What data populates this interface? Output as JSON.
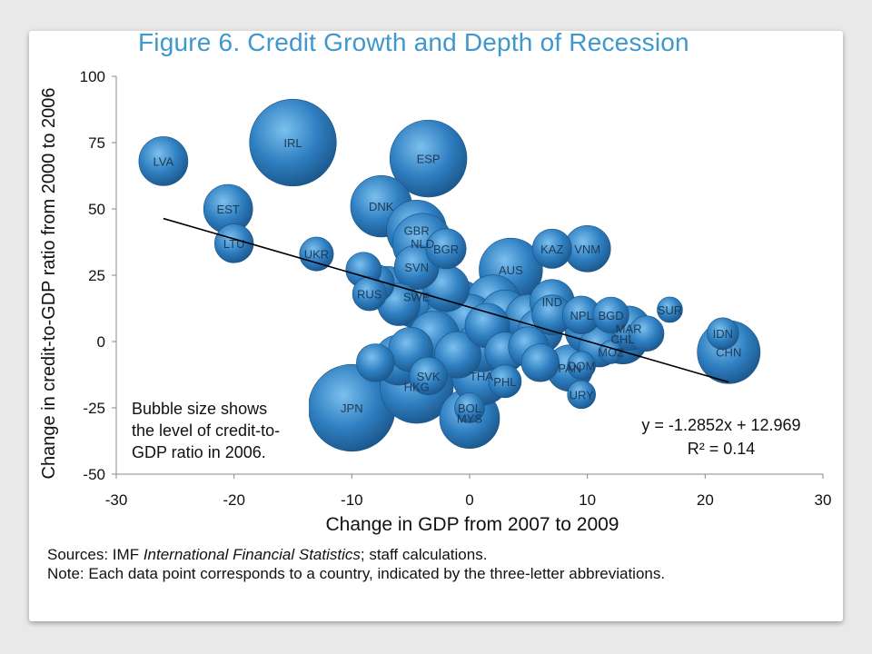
{
  "title": "Figure 6. Credit Growth and Depth of Recession",
  "notes": {
    "sources_prefix": "Sources: IMF ",
    "sources_italic": "International Financial Statistics",
    "sources_suffix": "; staff calculations.",
    "note": "Note: Each data point corresponds to a country, indicated by the three-letter abbreviations."
  },
  "colors": {
    "bubble": "#2f7fc1",
    "bubble_highlight": "#7cc0ee",
    "bubble_dark": "#1a5488",
    "label": "#1f3a56",
    "title": "#3e97cf",
    "trend": "#000000"
  },
  "chart_data": {
    "type": "scatter",
    "xlabel": "Change in GDP from 2007 to 2009",
    "ylabel": "Change in credit-to-GDP ratio from 2000 to 2006",
    "xlim": [
      -30,
      30
    ],
    "ylim": [
      -50,
      100
    ],
    "xticks": [
      "-30",
      "-20",
      "-10",
      "0",
      "10",
      "20",
      "30"
    ],
    "yticks": [
      "100",
      "75",
      "50",
      "25",
      "0",
      "-25",
      "-50"
    ],
    "grid": false,
    "annotation": [
      "Bubble size shows",
      "the level of credit-to-",
      "GDP ratio in 2006."
    ],
    "trendline": {
      "equation": "y = -1.2852x + 12.969",
      "r2": "R² = 0.14",
      "slope": -1.2852,
      "intercept": 12.969,
      "x_range": [
        -26,
        22
      ]
    },
    "labeled_points": [
      {
        "label": "LVA",
        "x": -26,
        "y": 68,
        "size": 67
      },
      {
        "label": "IRL",
        "x": -15,
        "y": 75,
        "size": 210
      },
      {
        "label": "ESP",
        "x": -3.5,
        "y": 69,
        "size": 165
      },
      {
        "label": "EST",
        "x": -20.5,
        "y": 50,
        "size": 67
      },
      {
        "label": "LTU",
        "x": -20,
        "y": 37,
        "size": 42
      },
      {
        "label": "UKR",
        "x": -13,
        "y": 33,
        "size": 32
      },
      {
        "label": "DNK",
        "x": -7.5,
        "y": 51,
        "size": 105
      },
      {
        "label": "GBR",
        "x": -4.5,
        "y": 42,
        "size": 100
      },
      {
        "label": "NLD",
        "x": -4,
        "y": 37,
        "size": 100
      },
      {
        "label": "BGR",
        "x": -2,
        "y": 35,
        "size": 45
      },
      {
        "label": "SVN",
        "x": -4.5,
        "y": 28,
        "size": 55
      },
      {
        "label": "RUS",
        "x": -8.5,
        "y": 18,
        "size": 32
      },
      {
        "label": "SWE",
        "x": -4.5,
        "y": 17,
        "size": 110
      },
      {
        "label": "AUS",
        "x": 3.5,
        "y": 27,
        "size": 112
      },
      {
        "label": "KAZ",
        "x": 7,
        "y": 35,
        "size": 43
      },
      {
        "label": "VNM",
        "x": 10,
        "y": 35,
        "size": 60
      },
      {
        "label": "IND",
        "x": 7,
        "y": 15,
        "size": 55
      },
      {
        "label": "NPL",
        "x": 9.5,
        "y": 10,
        "size": 40
      },
      {
        "label": "BGD",
        "x": 12,
        "y": 10,
        "size": 36
      },
      {
        "label": "SUR",
        "x": 17,
        "y": 12,
        "size": 18
      },
      {
        "label": "MAR",
        "x": 13.5,
        "y": 5,
        "size": 55
      },
      {
        "label": "CHL",
        "x": 13,
        "y": 1,
        "size": 70
      },
      {
        "label": "MOZ",
        "x": 12,
        "y": -4,
        "size": 15
      },
      {
        "label": "IDN",
        "x": 21.5,
        "y": 3,
        "size": 28
      },
      {
        "label": "CHN",
        "x": 22,
        "y": -4,
        "size": 110
      },
      {
        "label": "DOM",
        "x": 9.5,
        "y": -9,
        "size": 22
      },
      {
        "label": "PAN",
        "x": 8.5,
        "y": -10,
        "size": 60
      },
      {
        "label": "URY",
        "x": 9.5,
        "y": -20,
        "size": 22
      },
      {
        "label": "SVK",
        "x": -3.5,
        "y": -13,
        "size": 40
      },
      {
        "label": "THA",
        "x": 1,
        "y": -13,
        "size": 95
      },
      {
        "label": "PHL",
        "x": 3,
        "y": -15,
        "size": 30
      },
      {
        "label": "HKG",
        "x": -4.5,
        "y": -17,
        "size": 150
      },
      {
        "label": "BOL",
        "x": 0,
        "y": -25,
        "size": 25
      },
      {
        "label": "JPN",
        "x": -10,
        "y": -25,
        "size": 210
      },
      {
        "label": "MYS",
        "x": 0,
        "y": -29,
        "size": 100
      }
    ],
    "unlabeled_points": [
      {
        "x": -9,
        "y": 27,
        "size": 35
      },
      {
        "x": -8,
        "y": 22,
        "size": 40
      },
      {
        "x": -7,
        "y": 20,
        "size": 55
      },
      {
        "x": -6,
        "y": 14,
        "size": 50
      },
      {
        "x": -2,
        "y": 20,
        "size": 60
      },
      {
        "x": -1,
        "y": 12,
        "size": 100
      },
      {
        "x": -2,
        "y": 5,
        "size": 75
      },
      {
        "x": 0,
        "y": 8,
        "size": 75
      },
      {
        "x": 1.5,
        "y": 6,
        "size": 55
      },
      {
        "x": 3,
        "y": 10,
        "size": 70
      },
      {
        "x": 5,
        "y": 9,
        "size": 60
      },
      {
        "x": 6,
        "y": 4,
        "size": 55
      },
      {
        "x": 7,
        "y": 10,
        "size": 45
      },
      {
        "x": -3,
        "y": 2,
        "size": 70
      },
      {
        "x": -8,
        "y": -8,
        "size": 40
      },
      {
        "x": -6,
        "y": -7,
        "size": 70
      },
      {
        "x": -5,
        "y": -3,
        "size": 55
      },
      {
        "x": -1,
        "y": -5,
        "size": 60
      },
      {
        "x": 1,
        "y": -2,
        "size": 70
      },
      {
        "x": 3,
        "y": -4,
        "size": 45
      },
      {
        "x": 5,
        "y": -2,
        "size": 45
      },
      {
        "x": 6,
        "y": -8,
        "size": 40
      },
      {
        "x": 10,
        "y": 4,
        "size": 55
      },
      {
        "x": 11,
        "y": -2,
        "size": 45
      },
      {
        "x": 15,
        "y": 3,
        "size": 35
      },
      {
        "x": 2,
        "y": 15,
        "size": 80
      }
    ]
  }
}
